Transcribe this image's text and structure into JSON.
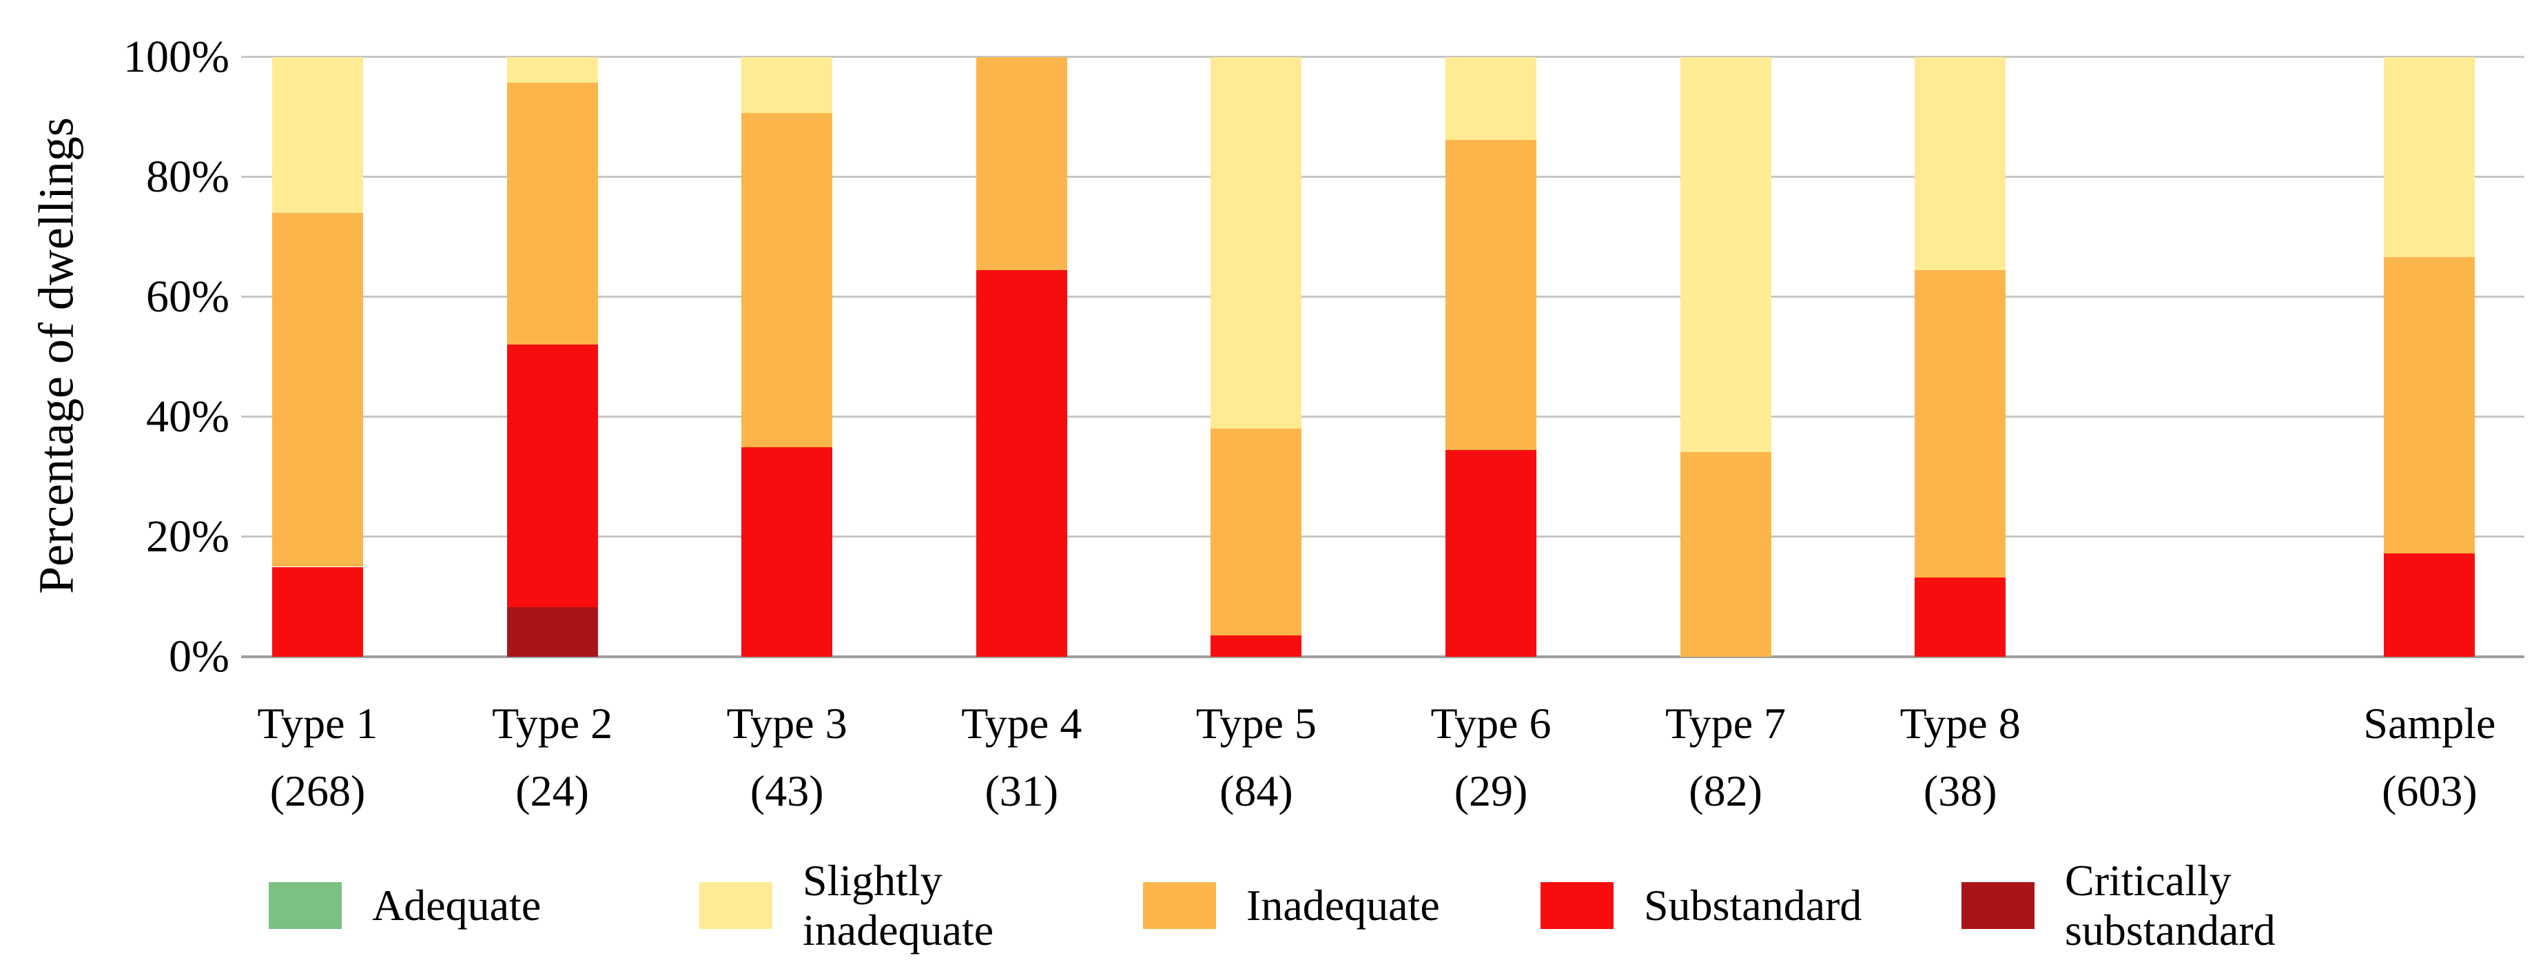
{
  "chart_data": {
    "type": "bar",
    "stacked": true,
    "title": "",
    "xlabel": "",
    "ylabel": "Percentage of dwellings",
    "ylim": [
      0,
      100
    ],
    "grid": "horizontal",
    "legend_position": "bottom",
    "y_ticks": [
      "0%",
      "20%",
      "40%",
      "60%",
      "80%",
      "100%"
    ],
    "categories": [
      {
        "label": "Type 1",
        "count": "(268)",
        "slot": 0
      },
      {
        "label": "Type 2",
        "count": "(24)",
        "slot": 1
      },
      {
        "label": "Type 3",
        "count": "(43)",
        "slot": 2
      },
      {
        "label": "Type 4",
        "count": "(31)",
        "slot": 3
      },
      {
        "label": "Type 5",
        "count": "(84)",
        "slot": 4
      },
      {
        "label": "Type 6",
        "count": "(29)",
        "slot": 5
      },
      {
        "label": "Type 7",
        "count": "(82)",
        "slot": 6
      },
      {
        "label": "Type 8",
        "count": "(38)",
        "slot": 7
      },
      {
        "label": "Sample",
        "count": "(603)",
        "slot": 9
      }
    ],
    "series": [
      {
        "name": "Critically substandard",
        "color": "#AA1419",
        "values": [
          0,
          8.3,
          0,
          0,
          0,
          0,
          0,
          0,
          0
        ]
      },
      {
        "name": "Substandard",
        "color": "#F70D0E",
        "values": [
          15.0,
          43.8,
          34.9,
          64.5,
          3.6,
          34.5,
          0,
          13.2,
          17.2
        ]
      },
      {
        "name": "Inadequate",
        "color": "#FCB54B",
        "values": [
          59.0,
          43.7,
          55.8,
          35.5,
          34.5,
          51.7,
          34.1,
          51.3,
          49.5
        ]
      },
      {
        "name": "Slightly inadequate",
        "color": "#FFEB94",
        "values": [
          26.0,
          4.2,
          9.3,
          0,
          61.9,
          13.8,
          65.9,
          35.5,
          33.3
        ]
      },
      {
        "name": "Adequate",
        "color": "#7CC084",
        "values": [
          0,
          0,
          0,
          0,
          0,
          0,
          0,
          0,
          0
        ]
      }
    ]
  }
}
